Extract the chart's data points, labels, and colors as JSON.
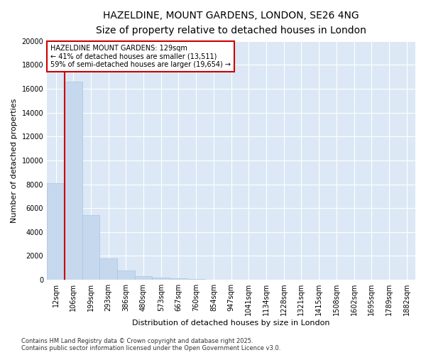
{
  "title_line1": "HAZELDINE, MOUNT GARDENS, LONDON, SE26 4NG",
  "title_line2": "Size of property relative to detached houses in London",
  "xlabel": "Distribution of detached houses by size in London",
  "ylabel": "Number of detached properties",
  "categories": [
    "12sqm",
    "106sqm",
    "199sqm",
    "293sqm",
    "386sqm",
    "480sqm",
    "573sqm",
    "667sqm",
    "760sqm",
    "854sqm",
    "947sqm",
    "1041sqm",
    "1134sqm",
    "1228sqm",
    "1321sqm",
    "1415sqm",
    "1508sqm",
    "1602sqm",
    "1695sqm",
    "1789sqm",
    "1882sqm"
  ],
  "values": [
    8100,
    16600,
    5400,
    1800,
    750,
    300,
    200,
    150,
    50,
    0,
    0,
    0,
    0,
    0,
    0,
    0,
    0,
    0,
    0,
    0,
    0
  ],
  "bar_color": "#c5d8ed",
  "bar_edgecolor": "#aac4e0",
  "background_color": "#dce8f5",
  "grid_color": "#ffffff",
  "annotation_text": "HAZELDINE MOUNT GARDENS: 129sqm\n← 41% of detached houses are smaller (13,511)\n59% of semi-detached houses are larger (19,654) →",
  "annotation_box_color": "#ffffff",
  "annotation_box_edgecolor": "#cc0000",
  "vline_color": "#cc0000",
  "ylim_max": 20000,
  "yticks": [
    0,
    2000,
    4000,
    6000,
    8000,
    10000,
    12000,
    14000,
    16000,
    18000,
    20000
  ],
  "footnote": "Contains HM Land Registry data © Crown copyright and database right 2025.\nContains public sector information licensed under the Open Government Licence v3.0.",
  "title_fontsize": 10,
  "subtitle_fontsize": 9,
  "label_fontsize": 8,
  "tick_fontsize": 7,
  "annotation_fontsize": 7,
  "footnote_fontsize": 6
}
